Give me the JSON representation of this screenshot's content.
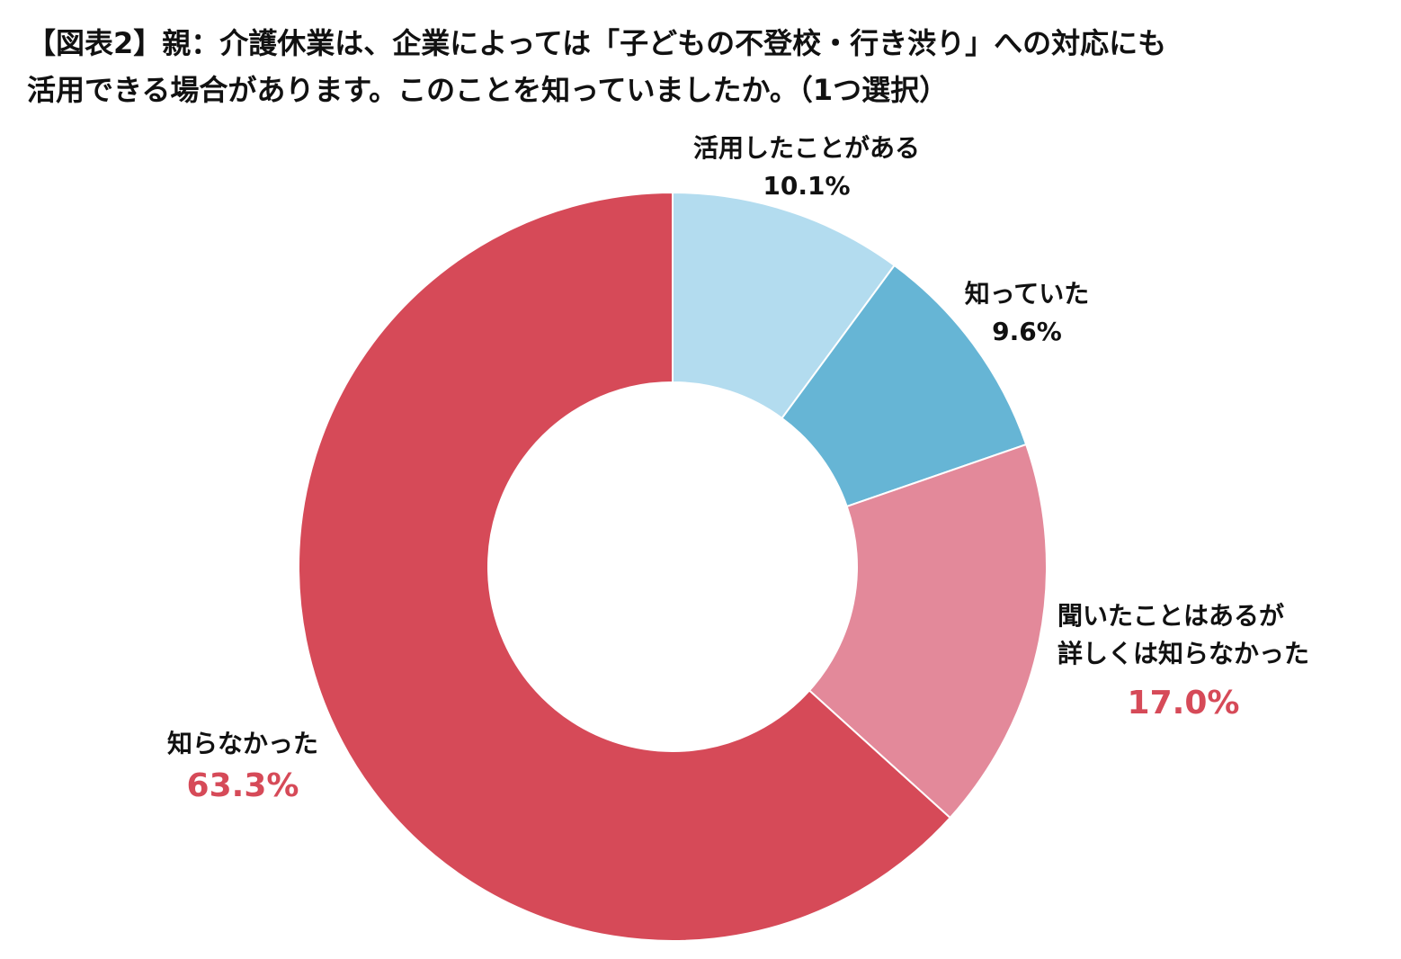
{
  "title_line1": "【図表2】親：介護休業は、企業によっては「子どもの不登校・行き渋り」への対応にも",
  "title_line2": "活用できる場合があります。このことを知っていましたか。（1つ選択）",
  "chart_data": {
    "type": "pie",
    "donut": true,
    "legend": "none",
    "slices": [
      {
        "label_lines": [
          "活用したことがある"
        ],
        "value": 10.1,
        "value_text": "10.1%",
        "color": "#b3dcef",
        "value_color": "#111111"
      },
      {
        "label_lines": [
          "知っていた"
        ],
        "value": 9.6,
        "value_text": "9.6%",
        "color": "#66b5d5",
        "value_color": "#111111"
      },
      {
        "label_lines": [
          "聞いたことはあるが",
          "詳しくは知らなかった"
        ],
        "value": 17.0,
        "value_text": "17.0%",
        "color": "#e3899a",
        "value_color": "#d64a58"
      },
      {
        "label_lines": [
          "知らなかった"
        ],
        "value": 63.3,
        "value_text": "63.3%",
        "color": "#d64a58",
        "value_color": "#d64a58"
      }
    ]
  }
}
